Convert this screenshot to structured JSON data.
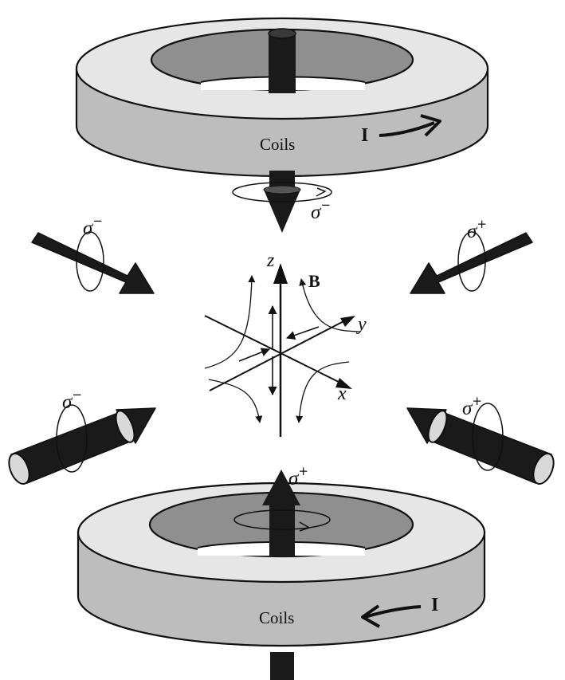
{
  "coils": {
    "top_label": "Coils",
    "bottom_label": "Coils",
    "top_current": "I",
    "bottom_current": "I"
  },
  "beams": {
    "top_vertical": {
      "sigma": "σ",
      "sign": "−"
    },
    "upper_left": {
      "sigma": "σ",
      "sign": "−"
    },
    "upper_right": {
      "sigma": "σ",
      "sign": "+"
    },
    "lower_left": {
      "sigma": "σ",
      "sign": "−"
    },
    "lower_right": {
      "sigma": "σ",
      "sign": "+"
    },
    "bottom_vertical": {
      "sigma": "σ",
      "sign": "+"
    }
  },
  "axes": {
    "z": "z",
    "y": "y",
    "x": "x"
  },
  "field": {
    "label": "B"
  },
  "colors": {
    "coil_top_face": "#e6e6e6",
    "coil_side": "#bdbdbd",
    "coil_hole": "#8f8f8f",
    "arrow_body": "#1a1a1a",
    "arrow_end_cap": "#d9d9d9",
    "line": "#111111"
  }
}
